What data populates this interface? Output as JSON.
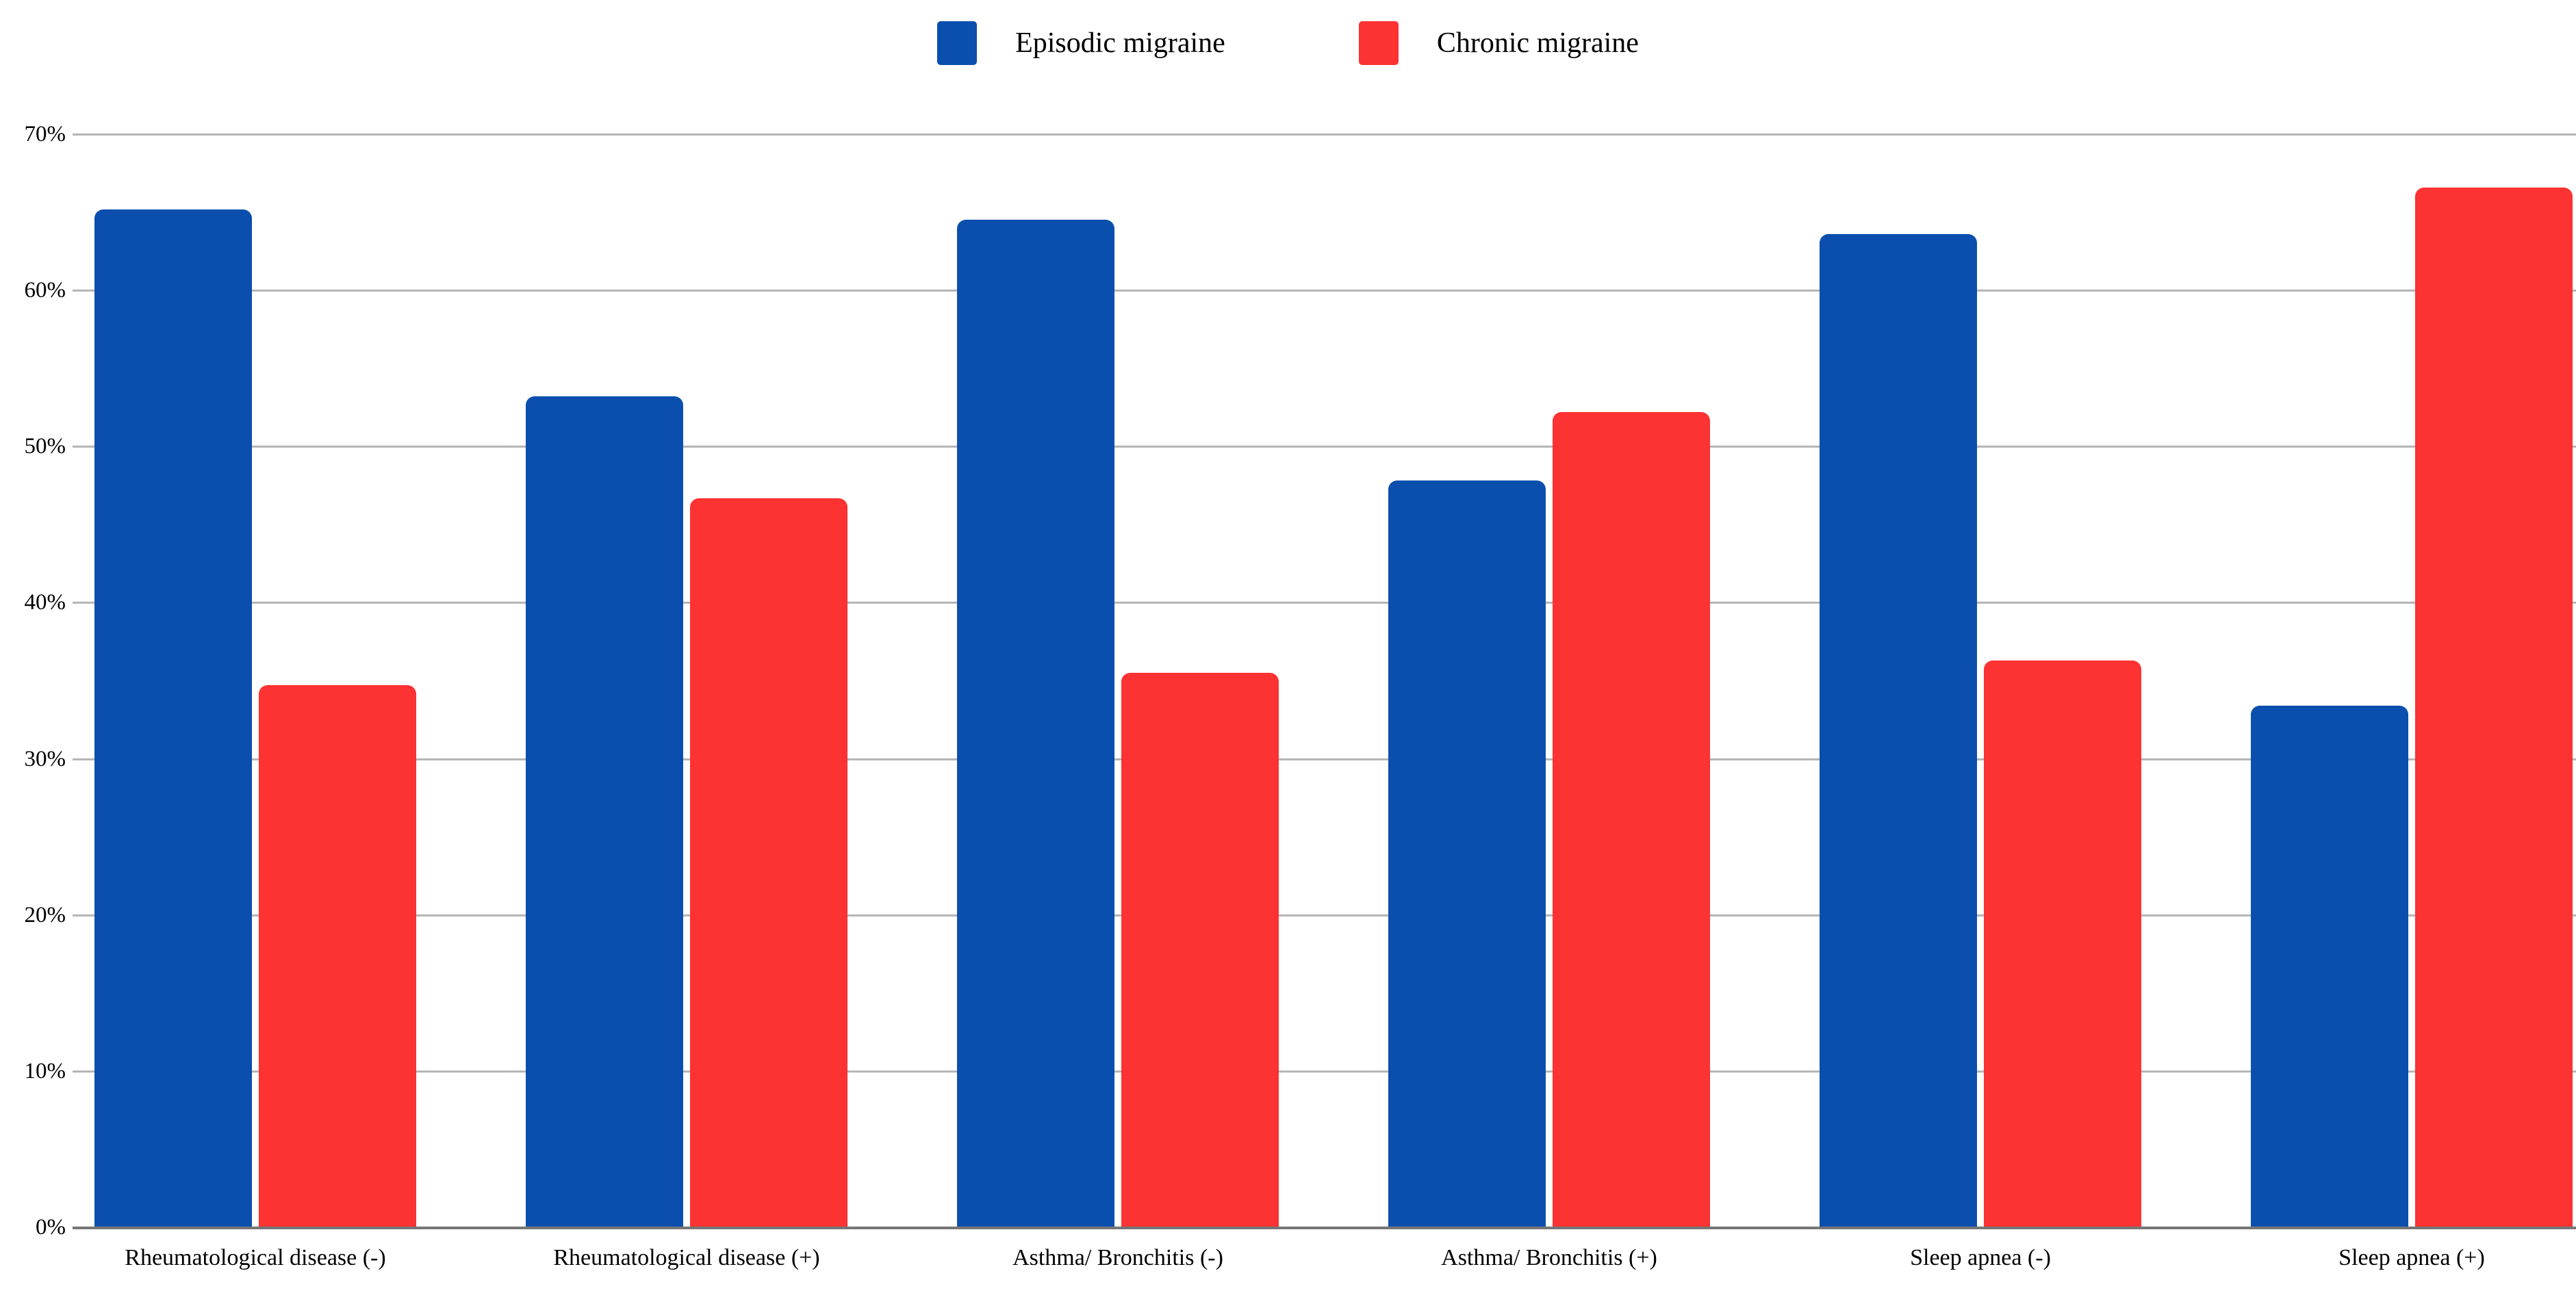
{
  "page": {
    "background": "#ffffff"
  },
  "chart_data": {
    "type": "bar",
    "title": "",
    "xlabel": "",
    "ylabel": "",
    "categories": [
      "Rheumatological disease (-)",
      "Rheumatological disease (+)",
      "Asthma/ Bronchitis (-)",
      "Asthma/ Bronchitis (+)",
      "Sleep apnea (-)",
      "Sleep apnea (+)"
    ],
    "series": [
      {
        "name": "Episodic migraine",
        "color": "#0b4fae",
        "values": [
          65.2,
          53.2,
          64.5,
          47.8,
          63.6,
          33.4
        ]
      },
      {
        "name": "Chronic migraine",
        "color": "#fd3232",
        "values": [
          34.7,
          46.7,
          35.5,
          52.2,
          36.3,
          66.6
        ]
      }
    ],
    "value_unit": "%",
    "ylim": [
      0,
      70
    ],
    "ytick_values": [
      0,
      10,
      20,
      30,
      40,
      50,
      60,
      70
    ],
    "yticks": [
      "0%",
      "10%",
      "20%",
      "30%",
      "40%",
      "50%",
      "60%",
      "70%"
    ],
    "grid": true,
    "gridline_color": "#b5b5b5",
    "baseline_color": "#767676",
    "text_color": "#000000",
    "legend_position": "top-center"
  }
}
